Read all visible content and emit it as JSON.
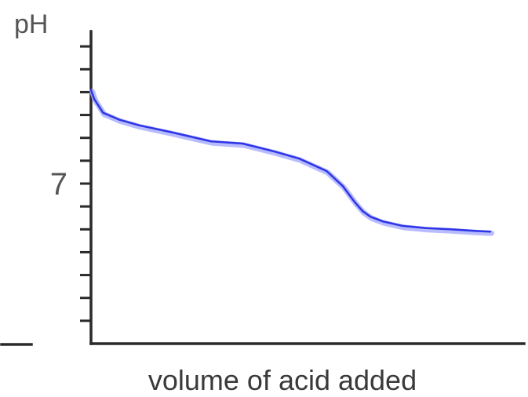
{
  "chart_data": {
    "type": "line",
    "title": "",
    "xlabel": "volume of acid added",
    "ylabel": "pH",
    "y_tick_labels": [
      {
        "value": 7,
        "label": "7"
      }
    ],
    "ylim": [
      0,
      14
    ],
    "xlim": [
      0,
      10
    ],
    "y_minor_ticks": [
      1,
      2,
      3,
      4,
      5,
      6,
      7,
      8,
      9,
      10,
      11,
      12,
      13
    ],
    "grid": false,
    "legend": "none",
    "series": [
      {
        "color": "#2f35e6",
        "x": [
          0,
          0.08,
          0.3,
          0.7,
          1.2,
          2.0,
          3.0,
          3.8,
          4.6,
          5.2,
          5.9,
          6.3,
          6.6,
          6.8,
          7.0,
          7.3,
          7.8,
          8.4,
          9.0,
          9.6,
          10.0
        ],
        "y": [
          11.1,
          10.7,
          10.1,
          9.8,
          9.55,
          9.25,
          8.85,
          8.75,
          8.4,
          8.1,
          7.55,
          6.9,
          6.2,
          5.8,
          5.55,
          5.35,
          5.15,
          5.05,
          5.0,
          4.93,
          4.9
        ]
      }
    ]
  }
}
